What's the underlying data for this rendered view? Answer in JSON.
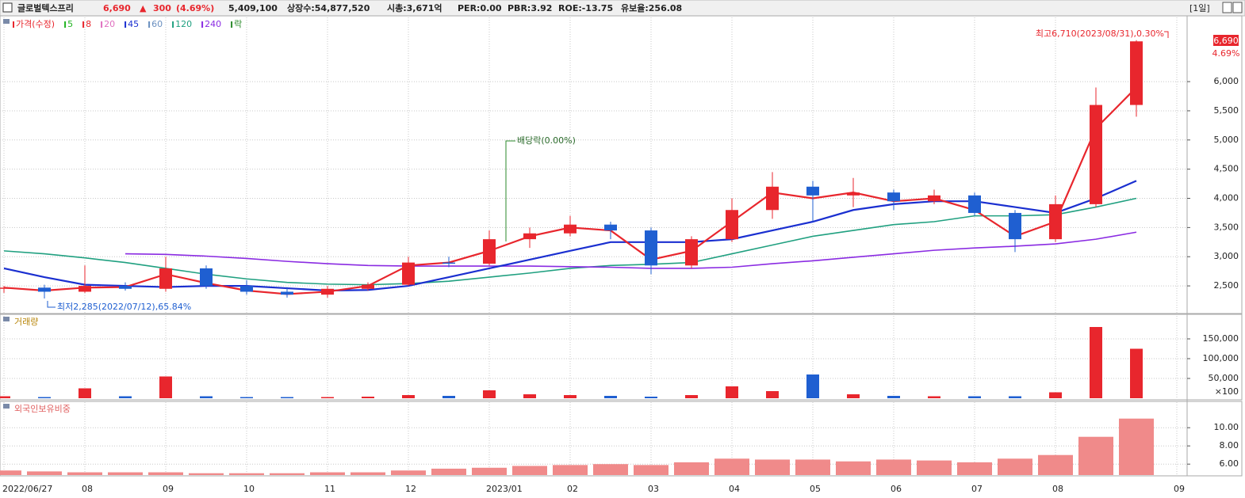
{
  "header": {
    "name": "글로벌텍스프리",
    "price": "6,690",
    "arrow": "▲",
    "change": "300",
    "change_pct": "(4.69%)",
    "volume": "5,409,100",
    "listed": "상장수:54,877,520",
    "cap": "시총:3,671억",
    "per": "PER:0.00",
    "pbr": "PBR:3.92",
    "roe": "ROE:-13.75",
    "reserve": "유보율:256.08",
    "period": "[1일]"
  },
  "chart_data": [
    {
      "type": "candlestick",
      "legend": [
        {
          "label": "가격(수정)",
          "color": "#e8262d"
        },
        {
          "label": "5",
          "color": "#22b422"
        },
        {
          "label": "8",
          "color": "#e8262d"
        },
        {
          "label": "20",
          "color": "#e070c0"
        },
        {
          "label": "45",
          "color": "#1a2fd0"
        },
        {
          "label": "60",
          "color": "#6a8fc0"
        },
        {
          "label": "120",
          "color": "#20a080"
        },
        {
          "label": "240",
          "color": "#8a2be2"
        },
        {
          "label": "락",
          "color": "#2a8a2a"
        }
      ],
      "categories": [
        "2022/06/27",
        null,
        "08",
        null,
        "09",
        null,
        "10",
        null,
        "11",
        null,
        "12",
        null,
        "2023/01",
        null,
        "02",
        null,
        "03",
        null,
        "04",
        null,
        "05",
        null,
        "06",
        null,
        "07",
        null,
        "08",
        null,
        null,
        "09"
      ],
      "open": [
        2450,
        2470,
        2400,
        2500,
        2450,
        2800,
        2500,
        2400,
        2350,
        2450,
        2520,
        2900,
        2880,
        3300,
        3400,
        3550,
        3450,
        2850,
        3300,
        3800,
        4200,
        4050,
        4100,
        3950,
        4050,
        3750,
        3300,
        3900,
        5600,
        null
      ],
      "high": [
        2500,
        2520,
        2850,
        2560,
        3000,
        2850,
        2600,
        2480,
        2500,
        2560,
        3000,
        3000,
        3450,
        3500,
        3700,
        3600,
        3500,
        3350,
        4000,
        4450,
        4300,
        4350,
        4150,
        4150,
        4100,
        3800,
        4050,
        5900,
        6710,
        null
      ],
      "low": [
        2380,
        2285,
        2380,
        2420,
        2400,
        2450,
        2350,
        2300,
        2300,
        2420,
        2500,
        2820,
        2850,
        3150,
        3350,
        3300,
        2700,
        2800,
        3250,
        3650,
        3600,
        3850,
        3800,
        3900,
        3700,
        3080,
        3250,
        3850,
        5400,
        null
      ],
      "close": [
        2470,
        2400,
        2500,
        2450,
        2800,
        2500,
        2400,
        2350,
        2450,
        2520,
        2900,
        2880,
        3300,
        3400,
        3550,
        3450,
        2850,
        3300,
        3800,
        4200,
        4050,
        4100,
        3950,
        4050,
        3750,
        3300,
        3900,
        5600,
        6690,
        null
      ],
      "up_color": "#e8262d",
      "down_color": "#1f5fd1",
      "ma": [
        {
          "color": "#20a080",
          "values": [
            3100,
            3050,
            2980,
            2900,
            2800,
            2700,
            2620,
            2560,
            2530,
            2520,
            2540,
            2580,
            2650,
            2720,
            2800,
            2850,
            2870,
            2900,
            3050,
            3200,
            3350,
            3450,
            3550,
            3600,
            3700,
            3700,
            3720,
            3850,
            4000,
            null
          ]
        },
        {
          "color": "#8a2be2",
          "values": [
            null,
            null,
            null,
            3050,
            3040,
            3010,
            2970,
            2920,
            2880,
            2850,
            2840,
            2840,
            2840,
            2840,
            2830,
            2820,
            2800,
            2800,
            2820,
            2880,
            2930,
            2990,
            3050,
            3110,
            3150,
            3180,
            3220,
            3300,
            3420,
            null
          ]
        },
        {
          "color": "#1a2fd0",
          "values": [
            2800,
            2650,
            2520,
            2500,
            2480,
            2500,
            2500,
            2460,
            2420,
            2430,
            2500,
            2650,
            2800,
            2950,
            3100,
            3250,
            3250,
            3250,
            3300,
            3450,
            3600,
            3800,
            3900,
            3950,
            3950,
            3850,
            3750,
            4000,
            4300,
            null
          ]
        },
        {
          "color": "#e8262d",
          "values": [
            2470,
            2420,
            2470,
            2480,
            2700,
            2550,
            2420,
            2360,
            2400,
            2500,
            2850,
            2900,
            3100,
            3350,
            3500,
            3450,
            2950,
            3100,
            3600,
            4100,
            4000,
            4100,
            3950,
            4000,
            3800,
            3350,
            3600,
            5200,
            5900,
            null
          ]
        }
      ],
      "ylim": [
        2040,
        7100
      ],
      "yticks": [
        {
          "value": 2500,
          "label": "2,500"
        },
        {
          "value": 3000,
          "label": "3,000"
        },
        {
          "value": 3500,
          "label": "3,500"
        },
        {
          "value": 4000,
          "label": "4,000"
        },
        {
          "value": 4500,
          "label": "4,500"
        },
        {
          "value": 5000,
          "label": "5,000"
        },
        {
          "value": 5500,
          "label": "5,500"
        },
        {
          "value": 6000,
          "label": "6,000"
        }
      ],
      "annotations": {
        "high": "최고6,710(2023/08/31),0.30%",
        "low": "최저2,285(2022/07/12),65.84%",
        "dividend": "배당락(0.00%)",
        "last": "6,690",
        "last_pct": "4.69%"
      }
    },
    {
      "type": "bar",
      "title": "거래량",
      "values": [
        5000,
        3000,
        25000,
        5000,
        55000,
        5000,
        3000,
        3000,
        3000,
        4000,
        8000,
        6000,
        20000,
        10000,
        8000,
        6000,
        4000,
        8000,
        30000,
        18000,
        60000,
        10000,
        6000,
        5000,
        5000,
        5000,
        15000,
        180000,
        125000,
        null
      ],
      "ylim": [
        0,
        208000
      ],
      "yticks": [
        {
          "value": 50000,
          "label": "50,000"
        },
        {
          "value": 100000,
          "label": "100,000"
        },
        {
          "value": 150000,
          "label": "150,000"
        }
      ],
      "unit": "×100"
    },
    {
      "type": "bar",
      "title": "외국인보유비중",
      "color": "#f08a8a",
      "values": [
        5.3,
        5.2,
        5.1,
        5.1,
        5.1,
        5.0,
        5.0,
        5.0,
        5.1,
        5.1,
        5.3,
        5.5,
        5.6,
        5.8,
        5.9,
        6.0,
        5.9,
        6.2,
        6.6,
        6.5,
        6.5,
        6.3,
        6.5,
        6.4,
        6.2,
        6.6,
        7.0,
        9.0,
        11.0,
        null
      ],
      "ylim": [
        4.8,
        12.8
      ],
      "yticks": [
        {
          "value": 6,
          "label": "6.00"
        },
        {
          "value": 8,
          "label": "8.00"
        },
        {
          "value": 10,
          "label": "10.00"
        }
      ]
    }
  ]
}
